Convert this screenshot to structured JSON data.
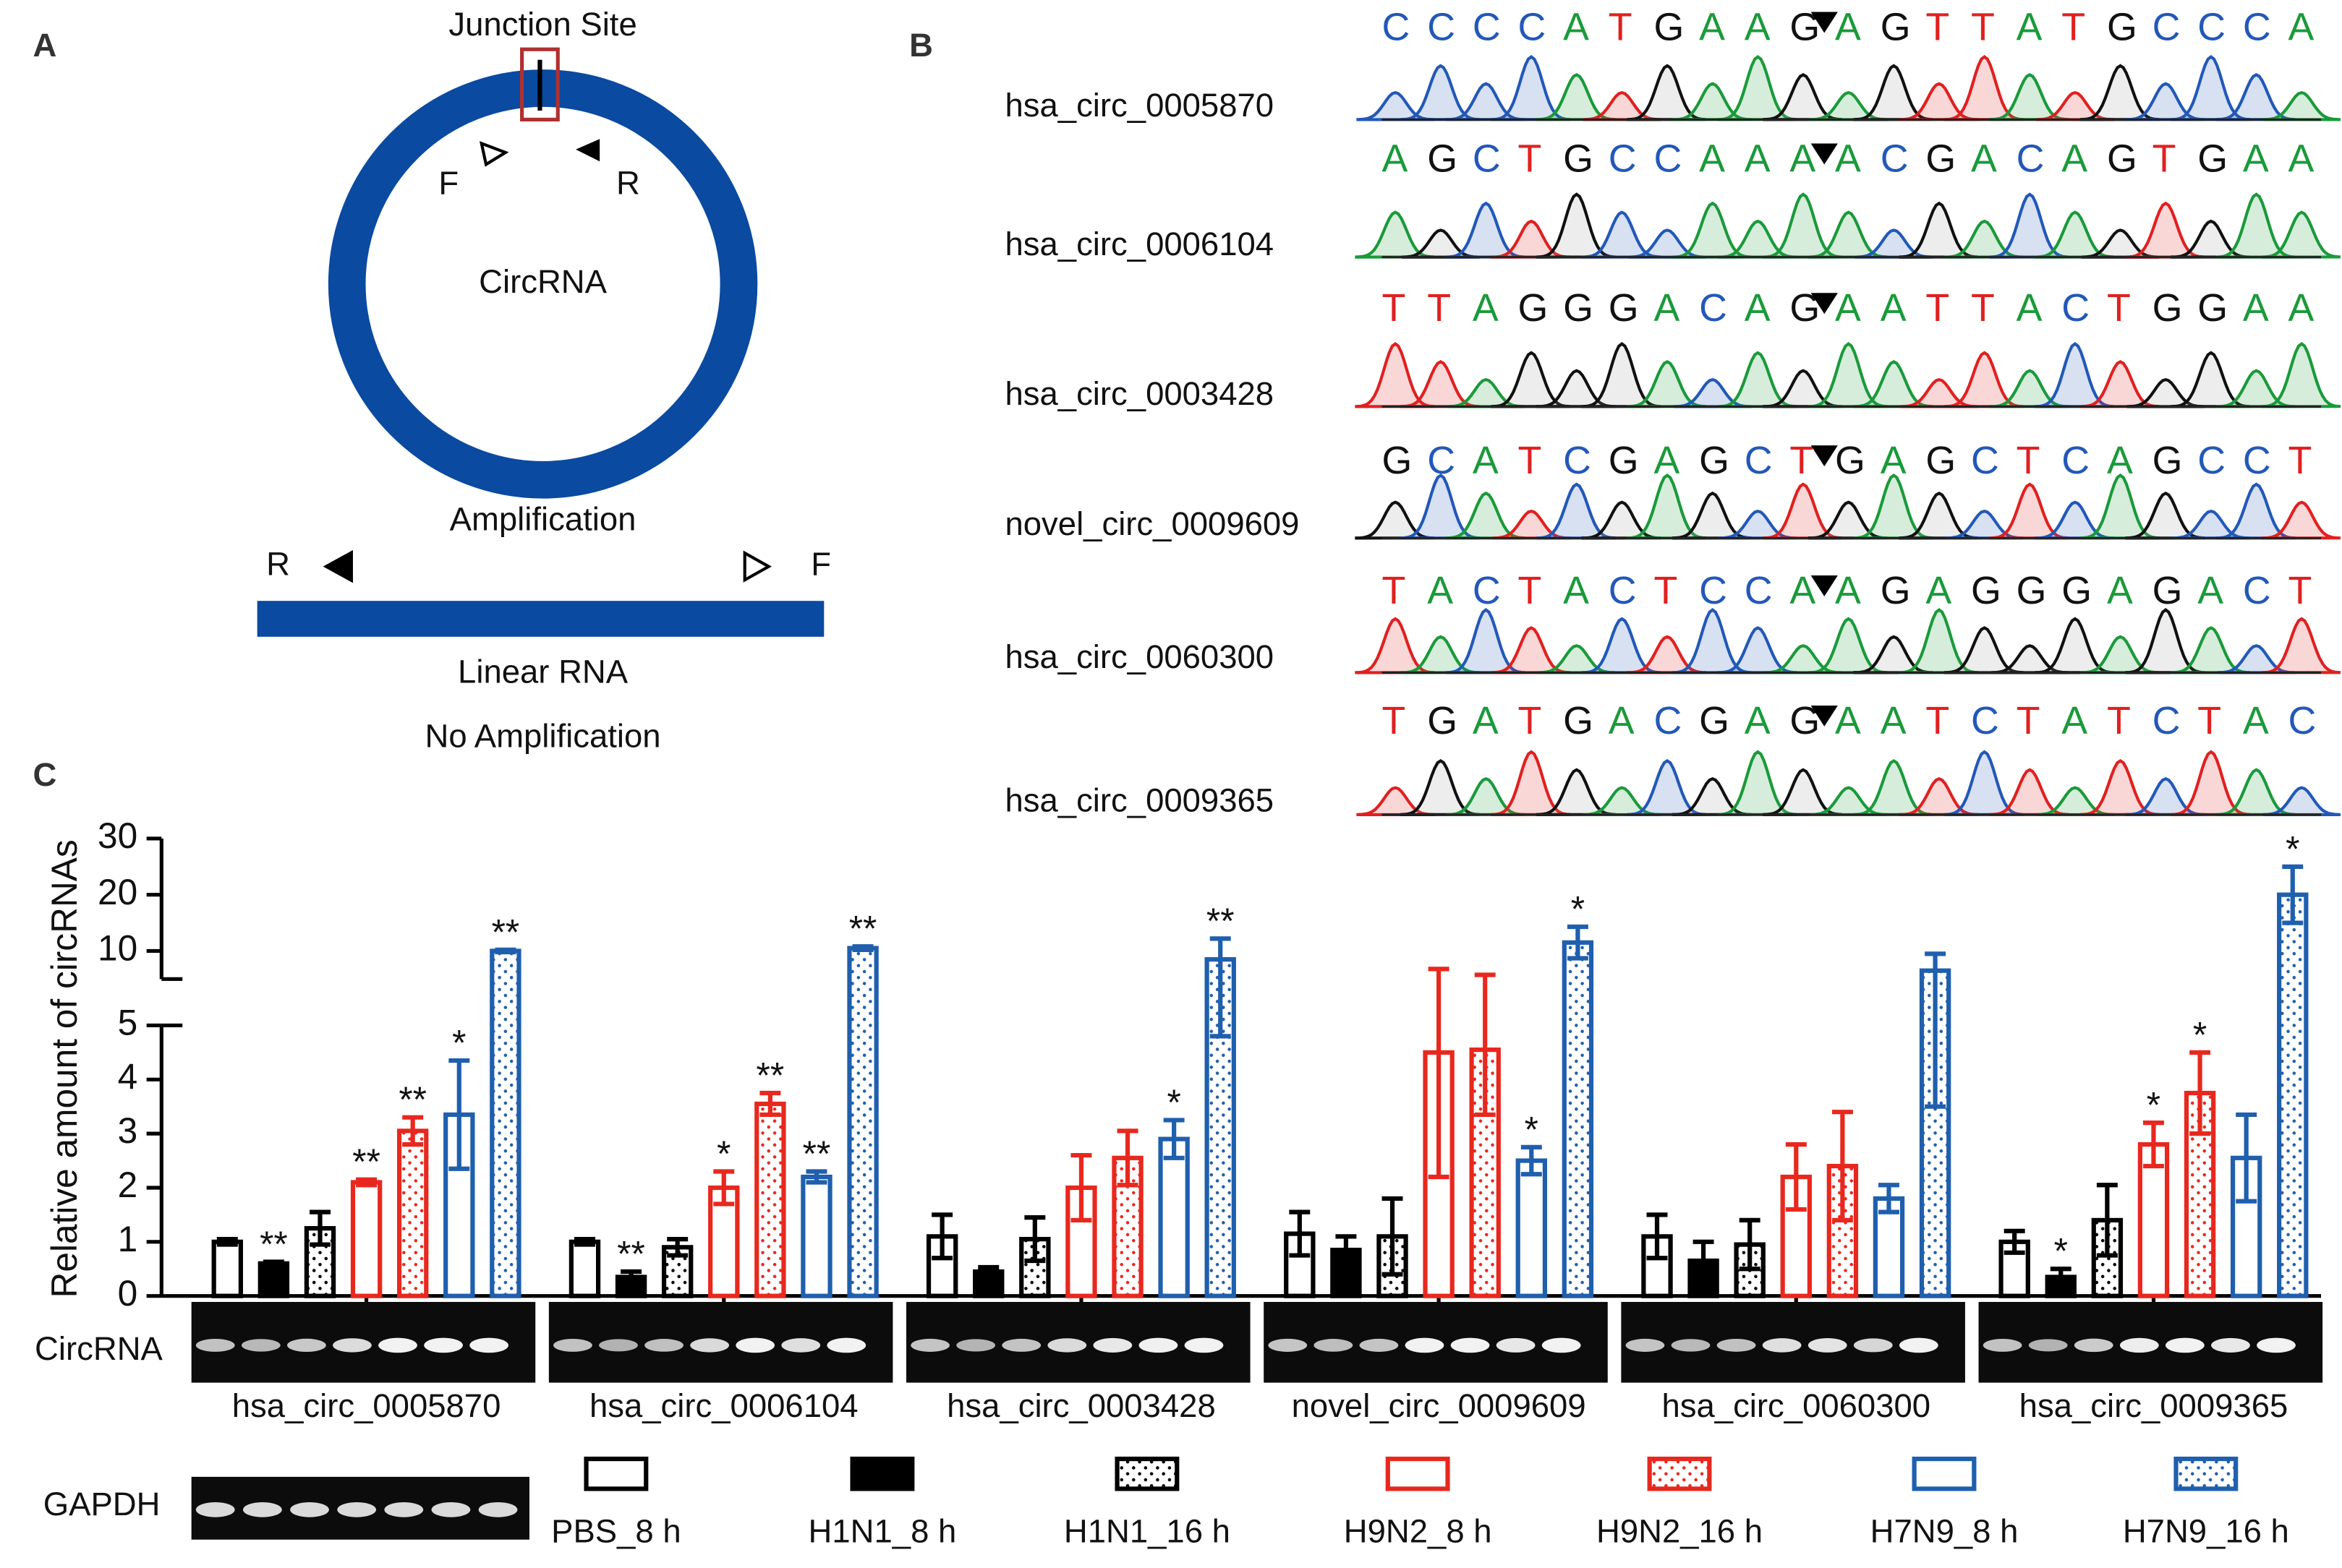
{
  "panel_a": {
    "label": "A",
    "junction": "Junction Site",
    "circ_f": "F",
    "circ_r": "R",
    "circ_label": "CircRNA",
    "circ_result": "Amplification",
    "lin_r": "R",
    "lin_f": "F",
    "lin_label": "Linear RNA",
    "lin_result": "No Amplification"
  },
  "panel_b": {
    "label": "B",
    "rows": [
      {
        "name": "hsa_circ_0005870",
        "sequence": "CCCCATGAAGAGTTATGCCCA"
      },
      {
        "name": "hsa_circ_0006104",
        "sequence": "AGCTGCCAAAACGACAGTGAA"
      },
      {
        "name": "hsa_circ_0003428",
        "sequence": "TTAGGGACAGAATTACTGGAA"
      },
      {
        "name": "novel_circ_0009609",
        "sequence": "GCATCGAGCTGAGCTCAGCCT"
      },
      {
        "name": "hsa_circ_0060300",
        "sequence": "TACTACTCCAAGAGGGAGACT"
      },
      {
        "name": "hsa_circ_0009365",
        "sequence": "TGATGACGAGAATCTATCTAC"
      }
    ]
  },
  "chart_data": {
    "type": "bar",
    "panel_label": "C",
    "ylabel": "Relative amount of circRNAs",
    "categories": [
      "hsa_circ_0005870",
      "hsa_circ_0006104",
      "hsa_circ_0003428",
      "novel_circ_0009609",
      "hsa_circ_0060300",
      "hsa_circ_0009365"
    ],
    "ylim": [
      0,
      5
    ],
    "yticks": [
      0,
      1,
      2,
      3,
      4,
      5
    ],
    "ylim_upper": [
      5,
      30
    ],
    "yticks_upper": [
      10,
      20,
      30
    ],
    "gel_labels": {
      "circ": "CircRNA",
      "gapdh": "GAPDH"
    },
    "series": [
      {
        "name": "PBS_8 h",
        "color": "#000000",
        "fill": "open",
        "values": [
          1.0,
          1.0,
          1.1,
          1.15,
          1.1,
          1.0
        ],
        "errors": [
          0.05,
          0.05,
          0.4,
          0.4,
          0.4,
          0.2
        ]
      },
      {
        "name": "H1N1_8 h",
        "color": "#000000",
        "fill": "solid",
        "values": [
          0.6,
          0.35,
          0.45,
          0.85,
          0.65,
          0.35
        ],
        "errors": [
          0.03,
          0.1,
          0.08,
          0.25,
          0.35,
          0.15
        ],
        "significance": [
          "**",
          "**",
          null,
          null,
          null,
          "*"
        ]
      },
      {
        "name": "H1N1_16 h",
        "color": "#000000",
        "fill": "dotted",
        "values": [
          1.25,
          0.9,
          1.05,
          1.1,
          0.95,
          1.4
        ],
        "errors": [
          0.3,
          0.15,
          0.4,
          0.7,
          0.45,
          0.65
        ]
      },
      {
        "name": "H9N2_8 h",
        "color": "#e8281e",
        "fill": "open",
        "values": [
          2.1,
          2.0,
          2.0,
          4.5,
          2.2,
          2.8
        ],
        "errors": [
          0.05,
          0.3,
          0.6,
          2.3,
          0.6,
          0.4
        ],
        "significance": [
          "**",
          "*",
          null,
          null,
          null,
          "*"
        ]
      },
      {
        "name": "H9N2_16 h",
        "color": "#e8281e",
        "fill": "dotted",
        "values": [
          3.05,
          3.55,
          2.55,
          4.55,
          2.4,
          3.75
        ],
        "errors": [
          0.25,
          0.2,
          0.5,
          1.2,
          1.0,
          0.75
        ],
        "significance": [
          "**",
          "**",
          null,
          null,
          null,
          "*"
        ]
      },
      {
        "name": "H7N9_8 h",
        "color": "#1f5fad",
        "fill": "open",
        "values": [
          3.35,
          2.2,
          2.9,
          2.5,
          1.8,
          2.55
        ],
        "errors": [
          1.0,
          0.1,
          0.35,
          0.25,
          0.25,
          0.8
        ],
        "significance": [
          "*",
          "**",
          "*",
          "*",
          null,
          null
        ]
      },
      {
        "name": "H7N9_16 h",
        "color": "#1f5fad",
        "fill": "dotted",
        "values": [
          10,
          10.5,
          8.5,
          11.5,
          6.5,
          20
        ],
        "errors": [
          0.2,
          0.3,
          3.7,
          2.8,
          3,
          5
        ],
        "significance": [
          "**",
          "**",
          "**",
          "*",
          null,
          "*"
        ]
      }
    ]
  }
}
